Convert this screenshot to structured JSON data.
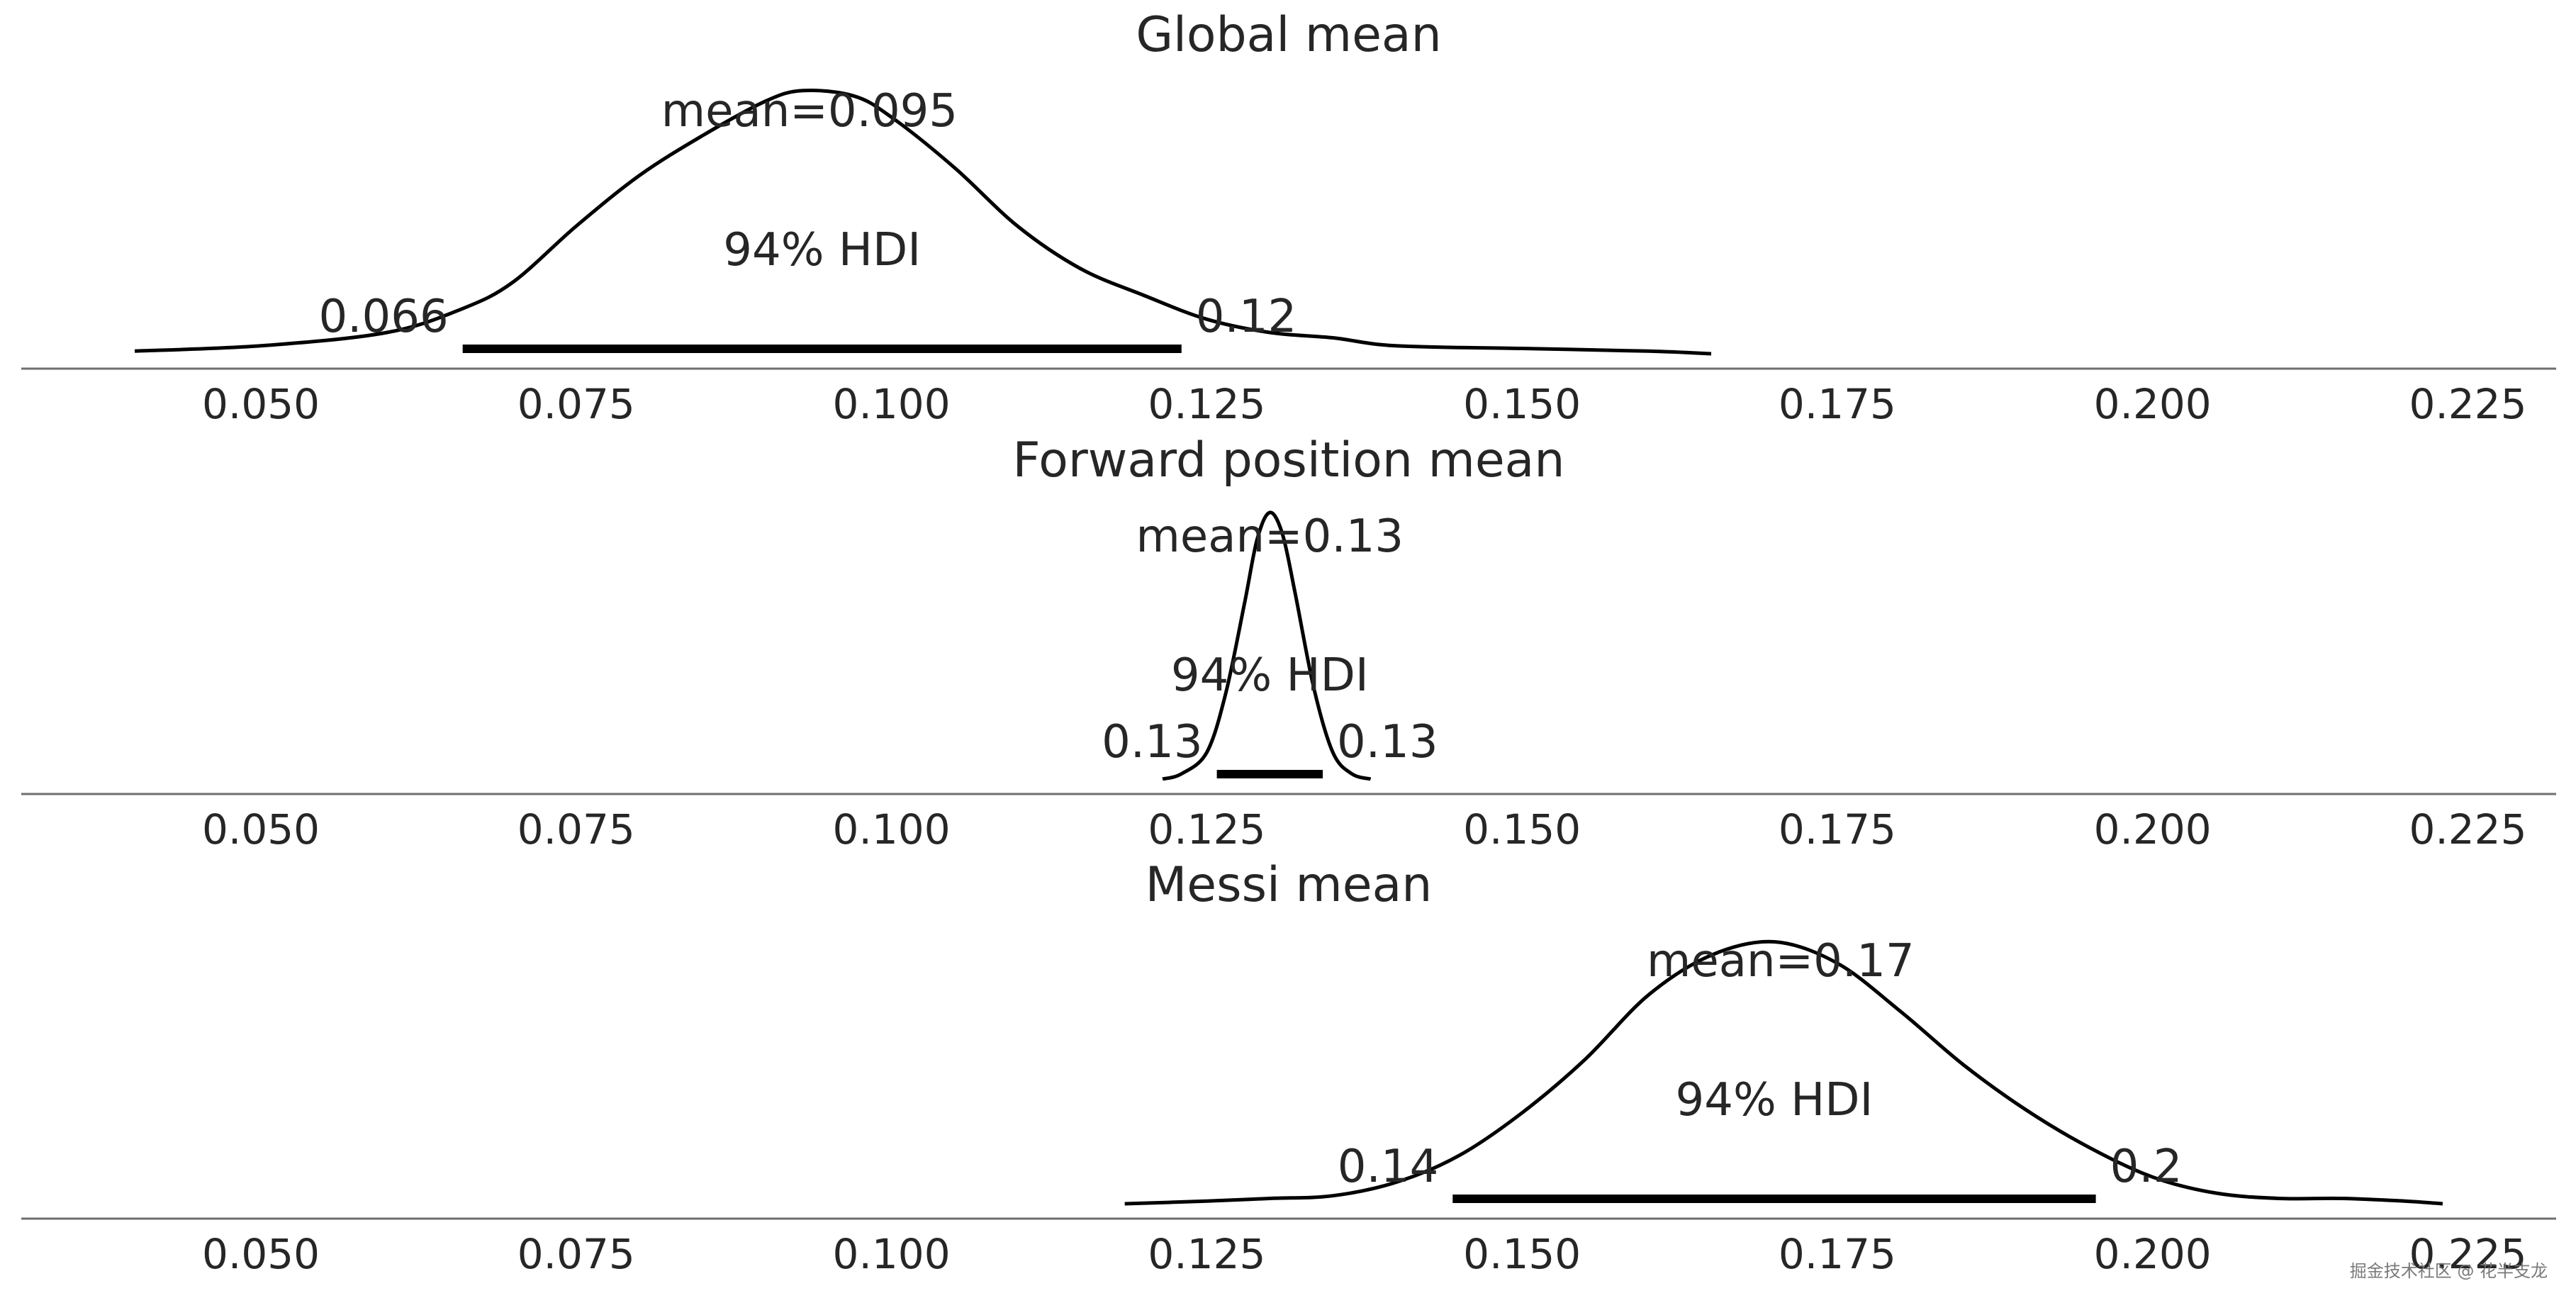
{
  "chart_data": [
    {
      "type": "area",
      "title": "Global mean",
      "mean_label": "mean=0.095",
      "hdi_label": "94% HDI",
      "hdi": [
        0.066,
        0.123
      ],
      "hdi_low_label": "0.066",
      "hdi_high_label": "0.12",
      "xlim": [
        0.031,
        0.232
      ],
      "xticks": [
        0.05,
        0.075,
        0.1,
        0.125,
        0.15,
        0.175,
        0.2,
        0.225
      ],
      "xtick_labels": [
        "0.050",
        "0.075",
        "0.100",
        "0.125",
        "0.150",
        "0.175",
        "0.200",
        "0.225"
      ],
      "density": {
        "x": [
          0.04,
          0.05,
          0.06,
          0.066,
          0.07,
          0.075,
          0.08,
          0.085,
          0.09,
          0.093,
          0.097,
          0.1,
          0.105,
          0.11,
          0.115,
          0.12,
          0.125,
          0.13,
          0.135,
          0.14,
          0.15,
          0.16,
          0.165
        ],
        "y": [
          0.01,
          0.03,
          0.08,
          0.17,
          0.27,
          0.48,
          0.67,
          0.82,
          0.95,
          0.99,
          0.97,
          0.89,
          0.7,
          0.48,
          0.32,
          0.22,
          0.13,
          0.08,
          0.06,
          0.03,
          0.02,
          0.01,
          0.0
        ]
      }
    },
    {
      "type": "area",
      "title": "Forward position mean",
      "mean_label": "mean=0.13",
      "hdi_label": "94% HDI",
      "hdi": [
        0.1258,
        0.1342
      ],
      "hdi_low_label": "0.13",
      "hdi_high_label": "0.13",
      "xlim": [
        0.031,
        0.232
      ],
      "xticks": [
        0.05,
        0.075,
        0.1,
        0.125,
        0.15,
        0.175,
        0.2,
        0.225
      ],
      "xtick_labels": [
        "0.050",
        "0.075",
        "0.100",
        "0.125",
        "0.150",
        "0.175",
        "0.200",
        "0.225"
      ],
      "density": {
        "x": [
          0.1215,
          0.123,
          0.125,
          0.1265,
          0.128,
          0.129,
          0.13,
          0.131,
          0.132,
          0.1335,
          0.135,
          0.1365,
          0.138
        ],
        "y": [
          0.0,
          0.02,
          0.1,
          0.32,
          0.66,
          0.9,
          1.0,
          0.92,
          0.7,
          0.34,
          0.1,
          0.02,
          0.0
        ]
      }
    },
    {
      "type": "area",
      "title": "Messi mean",
      "mean_label": "mean=0.17",
      "hdi_label": "94% HDI",
      "hdi": [
        0.1445,
        0.1955
      ],
      "hdi_low_label": "0.14",
      "hdi_high_label": "0.2",
      "xlim": [
        0.031,
        0.232
      ],
      "xticks": [
        0.05,
        0.075,
        0.1,
        0.125,
        0.15,
        0.175,
        0.2,
        0.225
      ],
      "xtick_labels": [
        "0.050",
        "0.075",
        "0.100",
        "0.125",
        "0.150",
        "0.175",
        "0.200",
        "0.225"
      ],
      "density": {
        "x": [
          0.1185,
          0.125,
          0.13,
          0.135,
          0.14,
          0.145,
          0.15,
          0.155,
          0.16,
          0.165,
          0.17,
          0.175,
          0.18,
          0.185,
          0.19,
          0.195,
          0.2,
          0.205,
          0.21,
          0.215,
          0.22,
          0.223
        ],
        "y": [
          0.0,
          0.01,
          0.02,
          0.03,
          0.08,
          0.18,
          0.34,
          0.54,
          0.78,
          0.93,
          0.98,
          0.9,
          0.72,
          0.52,
          0.35,
          0.21,
          0.1,
          0.04,
          0.02,
          0.02,
          0.01,
          0.0
        ]
      }
    }
  ],
  "watermark": "掘金技术社区 @ 花半支龙"
}
